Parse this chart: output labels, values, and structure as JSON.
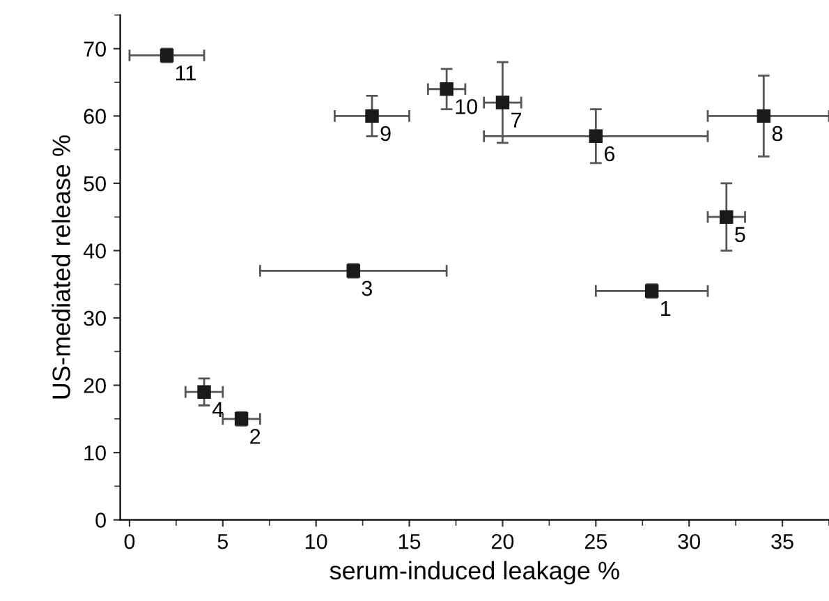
{
  "chart_data": {
    "type": "scatter",
    "xlabel": "serum-induced leakage %",
    "ylabel": "US-mediated release %",
    "x": [
      28,
      6,
      12,
      4,
      32,
      25,
      20,
      34,
      13,
      17,
      2
    ],
    "series": [
      {
        "color": "#1a1a1a",
        "values": [
          34,
          15,
          37,
          19,
          45,
          57,
          62,
          60,
          60,
          64,
          69
        ],
        "errors": [
          [
            33,
            35
          ],
          [
            14,
            16
          ],
          [
            36,
            38
          ],
          [
            17,
            21
          ],
          [
            40,
            50
          ],
          [
            53,
            61
          ],
          [
            56,
            68
          ],
          [
            54,
            66
          ],
          [
            57,
            63
          ],
          [
            61,
            67
          ],
          [
            68,
            70
          ]
        ],
        "xerrors": [
          [
            25,
            31
          ],
          [
            5,
            7
          ],
          [
            7,
            17
          ],
          [
            3,
            5
          ],
          [
            31,
            33
          ],
          [
            19,
            31
          ],
          [
            19,
            21
          ],
          [
            31,
            37.5
          ],
          [
            11,
            15
          ],
          [
            16,
            18
          ],
          [
            0,
            4
          ]
        ]
      }
    ],
    "annotations": [
      {
        "text": "1",
        "x": 28,
        "y": 34
      },
      {
        "text": "2",
        "x": 6,
        "y": 15
      },
      {
        "text": "3",
        "x": 12,
        "y": 37
      },
      {
        "text": "4",
        "x": 4,
        "y": 19
      },
      {
        "text": "5",
        "x": 32,
        "y": 45
      },
      {
        "text": "6",
        "x": 25,
        "y": 57
      },
      {
        "text": "7",
        "x": 20,
        "y": 62
      },
      {
        "text": "8",
        "x": 34,
        "y": 60
      },
      {
        "text": "9",
        "x": 13,
        "y": 60
      },
      {
        "text": "10",
        "x": 17,
        "y": 64
      },
      {
        "text": "11",
        "x": 2,
        "y": 69
      }
    ],
    "xlim": [
      -0.5,
      37.5
    ],
    "ylim": [
      0,
      75
    ],
    "xticks": [
      0,
      5,
      10,
      15,
      20,
      25,
      30,
      35
    ],
    "yticks": [
      0,
      10,
      20,
      30,
      40,
      50,
      60,
      70
    ],
    "marker": "square"
  }
}
